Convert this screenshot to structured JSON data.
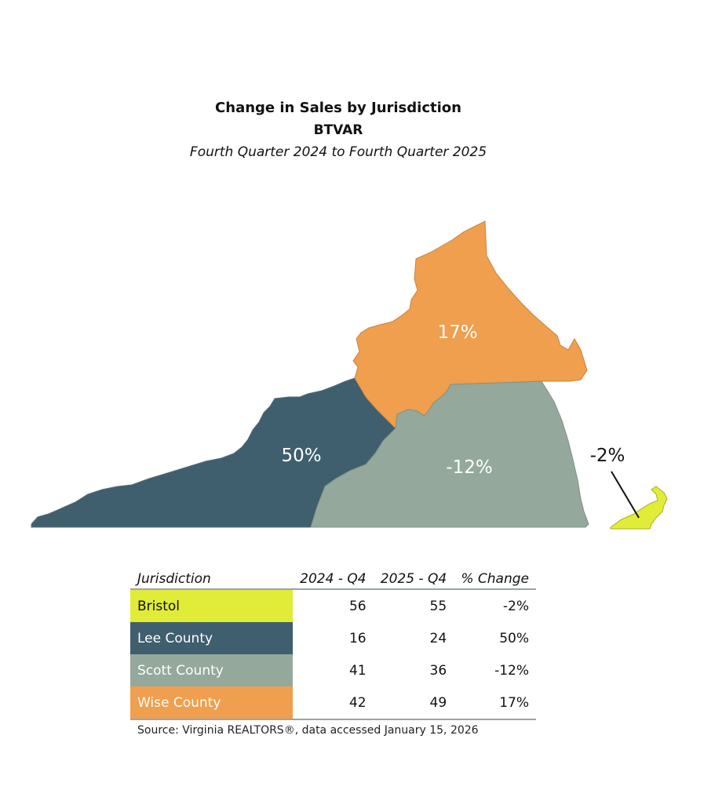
{
  "header": {
    "title": "Change in Sales by Jurisdiction",
    "subtitle": "BTVAR",
    "period": "Fourth Quarter 2024 to Fourth Quarter 2025"
  },
  "map": {
    "regions": [
      {
        "name": "Wise County",
        "label": "17%",
        "color": "#ef9f4d",
        "label_color": "#ffffff"
      },
      {
        "name": "Lee County",
        "label": "50%",
        "color": "#3f5e6e",
        "label_color": "#ffffff"
      },
      {
        "name": "Scott County",
        "label": "-12%",
        "color": "#94a99c",
        "label_color": "#ffffff"
      },
      {
        "name": "Bristol",
        "label": "-2%",
        "color": "#e0ec38",
        "label_color": "#111111"
      }
    ]
  },
  "table": {
    "headers": [
      "Jurisdiction",
      "2024 - Q4",
      "2025 - Q4",
      "% Change"
    ],
    "rows": [
      {
        "jurisdiction": "Bristol",
        "q4_2024": "56",
        "q4_2025": "55",
        "change": "-2%",
        "color": "#e0ec38",
        "text_color": "#111111"
      },
      {
        "jurisdiction": "Lee County",
        "q4_2024": "16",
        "q4_2025": "24",
        "change": "50%",
        "color": "#3f5e6e",
        "text_color": "#ffffff"
      },
      {
        "jurisdiction": "Scott County",
        "q4_2024": "41",
        "q4_2025": "36",
        "change": "-12%",
        "color": "#94a99c",
        "text_color": "#ffffff"
      },
      {
        "jurisdiction": "Wise County",
        "q4_2024": "42",
        "q4_2025": "49",
        "change": "17%",
        "color": "#ef9f4d",
        "text_color": "#ffffff"
      }
    ]
  },
  "source": "Source: Virginia REALTORS®, data accessed January 15, 2026"
}
